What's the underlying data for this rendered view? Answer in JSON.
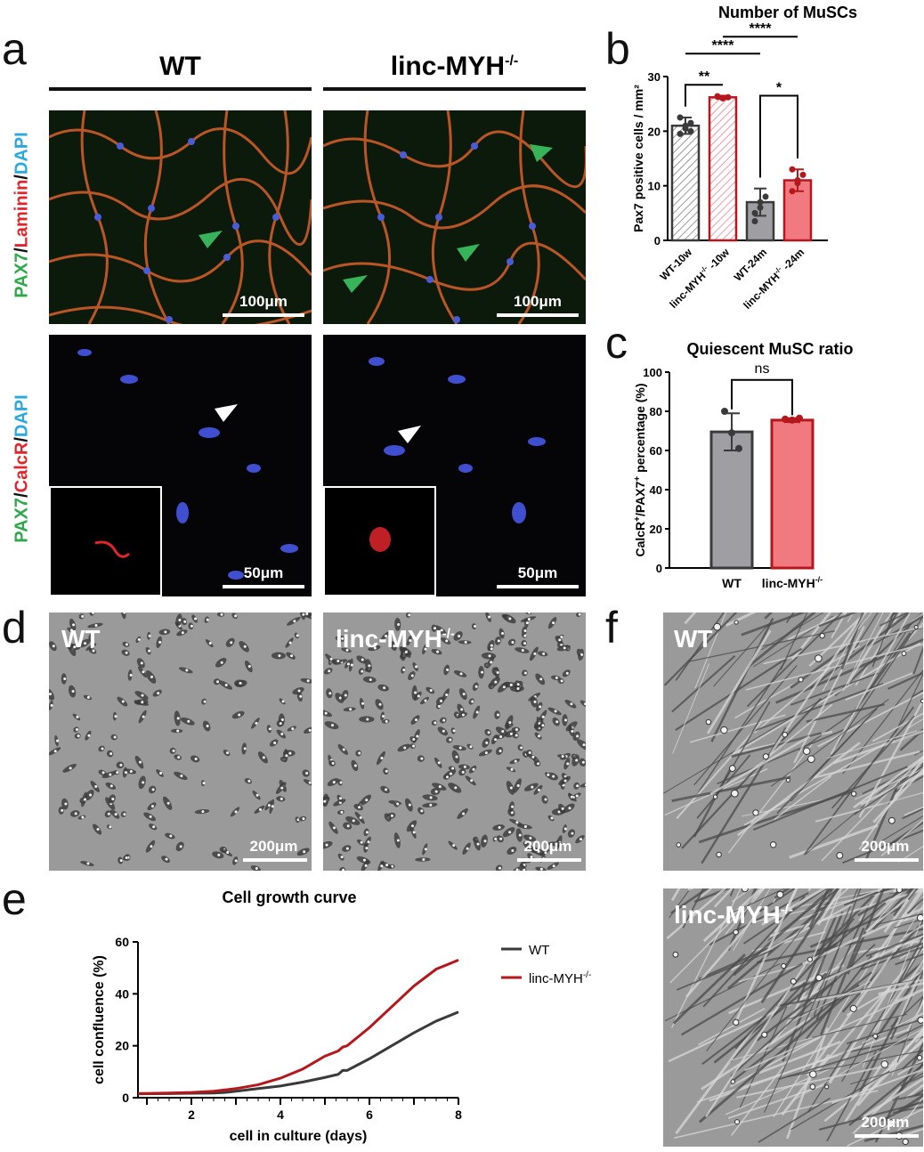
{
  "panels": {
    "a": "a",
    "b": "b",
    "c": "c",
    "d": "d",
    "e": "e",
    "f": "f"
  },
  "panel_a": {
    "col_wt": "WT",
    "col_ko_base": "linc-MYH",
    "col_ko_sup": "-/-",
    "row1_label": {
      "p1": "PAX7",
      "s1": "/",
      "p2": "Laminin",
      "s2": "/",
      "p3": "DAPI"
    },
    "row2_label": {
      "p1": "PAX7",
      "s1": "/",
      "p2": "CalcR",
      "s2": "/",
      "p3": "DAPI"
    },
    "scale_100": "100μm",
    "scale_50": "50μm"
  },
  "panel_d": {
    "label_wt": "WT",
    "label_ko_base": "linc-MYH",
    "label_ko_sup": "-/-",
    "scale": "200μm"
  },
  "panel_f": {
    "label_wt": "WT",
    "label_ko_base": "linc-MYH",
    "label_ko_sup": "-/-",
    "scale": "200μm"
  },
  "colors": {
    "wt_gray": "#9e9ea3",
    "ko_red": "#f07a7f",
    "ko_dark": "#b5171c",
    "wt_line": "#3a3a3a"
  },
  "chart_data": [
    {
      "id": "b",
      "type": "bar",
      "title": "Number of MuSCs",
      "ylabel": "Pax7 positive cells / mm²",
      "ylim": [
        0,
        30
      ],
      "yticks": [
        0,
        10,
        20,
        30
      ],
      "categories": [
        "WT-10w",
        "linc-MYH-/- -10w",
        "WT-24m",
        "linc-MYH-/- -24m"
      ],
      "category_labels": [
        {
          "base": "WT-10w",
          "sup": "",
          "tail": ""
        },
        {
          "base": "linc-MYH",
          "sup": "-/-",
          "tail": " -10w"
        },
        {
          "base": "WT-24m",
          "sup": "",
          "tail": ""
        },
        {
          "base": "linc-MYH",
          "sup": "-/-",
          "tail": " -24m"
        }
      ],
      "values": [
        21,
        26.2,
        7,
        11
      ],
      "errors": [
        1.5,
        0.3,
        2.5,
        2
      ],
      "points": [
        [
          19.5,
          20.5,
          21.5,
          22.5,
          21,
          20
        ],
        [
          26.3,
          26,
          26.2,
          26.4
        ],
        [
          5,
          7,
          8,
          3.5,
          6
        ],
        [
          9,
          10.5,
          12,
          13,
          11
        ]
      ],
      "hatched": [
        true,
        true,
        false,
        false
      ],
      "significance": [
        {
          "from": 0,
          "to": 1,
          "label": "**"
        },
        {
          "from": 2,
          "to": 3,
          "label": "*"
        },
        {
          "from": 0,
          "to": 2,
          "label": "****"
        },
        {
          "from": 1,
          "to": 3,
          "label": "****"
        }
      ]
    },
    {
      "id": "c",
      "type": "bar",
      "title": "Quiescent MuSC ratio",
      "ylabel_parts": {
        "a": "CalcR",
        "a_sup": "+",
        "b": "/PAX7",
        "b_sup": "+",
        "c": " percentage (%)"
      },
      "ylim": [
        0,
        100
      ],
      "yticks": [
        0,
        20,
        40,
        60,
        80,
        100
      ],
      "categories": [
        "WT",
        "linc-MYH-/-"
      ],
      "category_labels": [
        {
          "base": "WT",
          "sup": ""
        },
        {
          "base": "linc-MYH",
          "sup": "-/-"
        }
      ],
      "values": [
        69.5,
        75.5
      ],
      "errors": [
        9.5,
        1
      ],
      "points": [
        [
          80,
          69,
          61
        ],
        [
          76,
          75.5,
          76.5
        ]
      ],
      "significance": [
        {
          "from": 0,
          "to": 1,
          "label": "ns"
        }
      ]
    },
    {
      "id": "e",
      "type": "line",
      "title": "Cell growth curve",
      "xlabel": "cell in culture  (days)",
      "ylabel": "cell confluence (%)",
      "xlim": [
        0.8,
        8
      ],
      "ylim": [
        0,
        60
      ],
      "xticks": [
        2,
        4,
        6,
        8
      ],
      "yticks": [
        0,
        20,
        40,
        60
      ],
      "legend_position": "right",
      "series": [
        {
          "name": "WT",
          "name_base": "WT",
          "name_sup": "",
          "x": [
            0.8,
            1.5,
            2.0,
            2.5,
            2.75,
            3.0,
            3.5,
            4.0,
            4.5,
            5.0,
            5.3,
            5.4,
            5.5,
            6.0,
            6.5,
            7.0,
            7.5,
            8.0
          ],
          "y": [
            1.5,
            1.6,
            1.7,
            1.8,
            2.0,
            2.5,
            3.5,
            4.5,
            6.0,
            7.8,
            9.0,
            10.5,
            10.5,
            15.0,
            20.0,
            25.0,
            29.5,
            33.0
          ]
        },
        {
          "name": "linc-MYH-/-",
          "name_base": "linc-MYH",
          "name_sup": "-/-",
          "x": [
            0.8,
            1.5,
            2.0,
            2.5,
            2.75,
            3.0,
            3.5,
            4.0,
            4.5,
            5.0,
            5.3,
            5.4,
            5.5,
            6.0,
            6.5,
            7.0,
            7.5,
            8.0
          ],
          "y": [
            1.6,
            1.8,
            2.0,
            2.5,
            3.0,
            3.5,
            5.0,
            7.5,
            11.0,
            16.0,
            18.0,
            19.5,
            20.0,
            27.0,
            35.0,
            43.0,
            49.5,
            53.0
          ]
        }
      ]
    }
  ]
}
